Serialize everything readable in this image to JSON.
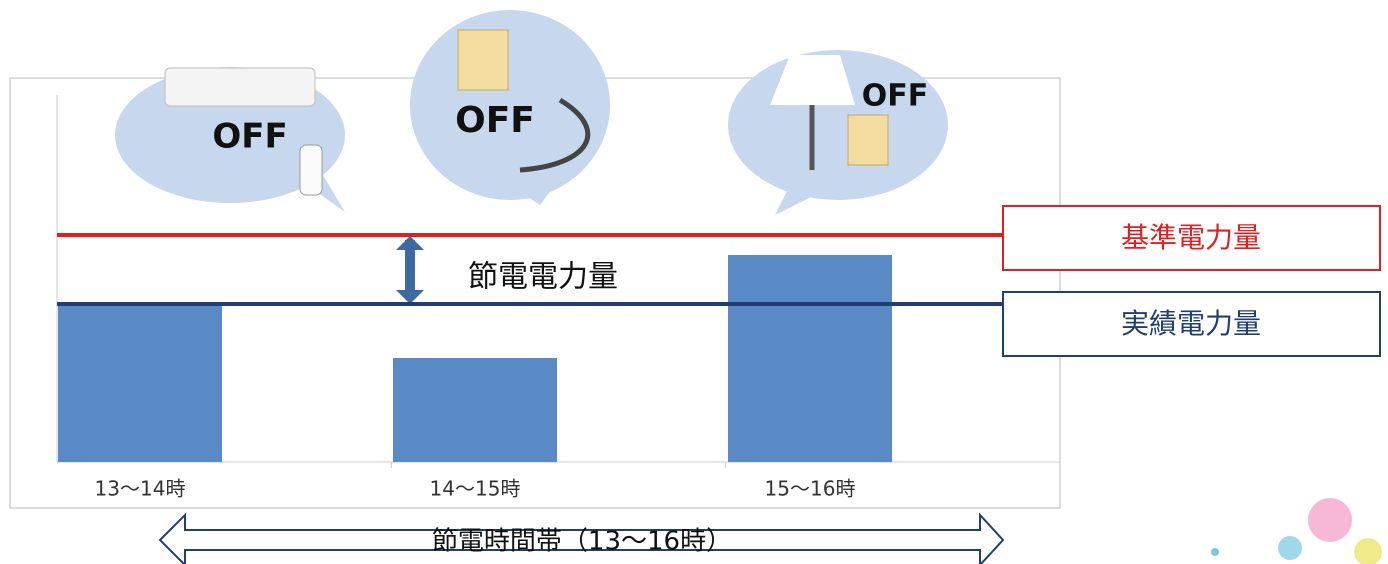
{
  "chart_data": {
    "type": "bar",
    "categories": [
      "13〜14時",
      "14〜15時",
      "15〜16時"
    ],
    "values": [
      157,
      104,
      207
    ],
    "color": "#5a8ac6",
    "ylim": [
      0,
      367
    ],
    "reference_lines": [
      {
        "label": "基準電力量",
        "value": 227,
        "color": "#e02020"
      },
      {
        "label": "実績電力量",
        "value": 158,
        "color": "#1f3f73"
      }
    ],
    "annotation": "節電電力量",
    "period_label": "節電時間帯（13〜16時）",
    "bubbles": [
      "OFF",
      "OFF",
      "OFF"
    ]
  }
}
